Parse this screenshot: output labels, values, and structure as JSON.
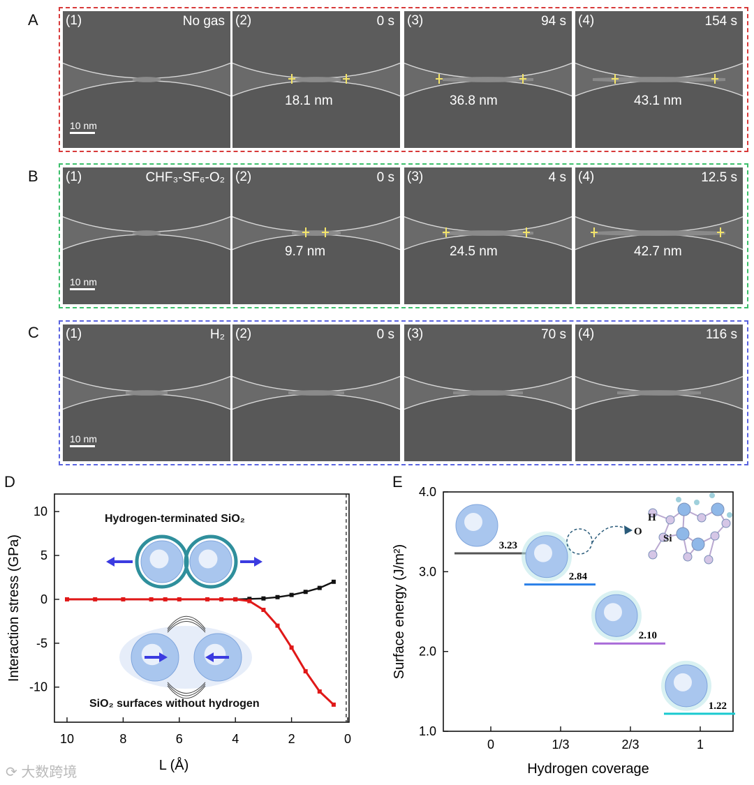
{
  "rows": [
    {
      "letter": "A",
      "color": "#d83a3a",
      "scalebar": "10 nm",
      "tiles": [
        {
          "idx": "(1)",
          "cond": "No gas",
          "meas": ""
        },
        {
          "idx": "(2)",
          "cond": "0 s",
          "meas": "18.1 nm"
        },
        {
          "idx": "(3)",
          "cond": "94 s",
          "meas": "36.8 nm"
        },
        {
          "idx": "(4)",
          "cond": "154 s",
          "meas": "43.1 nm"
        }
      ]
    },
    {
      "letter": "B",
      "color": "#3cbf6b",
      "scalebar": "10 nm",
      "tiles": [
        {
          "idx": "(1)",
          "cond": "CHF₃-SF₆-O₂",
          "meas": ""
        },
        {
          "idx": "(2)",
          "cond": "0 s",
          "meas": "9.7 nm"
        },
        {
          "idx": "(3)",
          "cond": "4 s",
          "meas": "24.5 nm"
        },
        {
          "idx": "(4)",
          "cond": "12.5 s",
          "meas": "42.7 nm"
        }
      ]
    },
    {
      "letter": "C",
      "color": "#5a64e0",
      "scalebar": "10 nm",
      "tiles": [
        {
          "idx": "(1)",
          "cond": "H₂",
          "meas": ""
        },
        {
          "idx": "(2)",
          "cond": "0 s",
          "meas": ""
        },
        {
          "idx": "(3)",
          "cond": "70 s",
          "meas": ""
        },
        {
          "idx": "(4)",
          "cond": "116 s",
          "meas": ""
        }
      ]
    }
  ],
  "panelD": {
    "letter": "D",
    "label_top": "Hydrogen-terminated SiO₂",
    "label_bottom": "SiO₂ surfaces without hydrogen"
  },
  "panelE": {
    "letter": "E",
    "orbit_labels": {
      "h": "H",
      "o": "O",
      "si": "Si"
    }
  },
  "watermark": "大数跨境",
  "chart_data": [
    {
      "type": "line",
      "title": "",
      "xlabel": "L (Å)",
      "ylabel": "Interaction stress (GPa)",
      "xlim": [
        10,
        0
      ],
      "ylim": [
        -14,
        12
      ],
      "xticks": [
        10,
        8,
        6,
        4,
        2,
        0
      ],
      "yticks": [
        10,
        5,
        0,
        -5,
        -10
      ],
      "series": [
        {
          "name": "Hydrogen-terminated SiO₂",
          "color": "#111111",
          "x": [
            10,
            9,
            8,
            7,
            6.5,
            6,
            5,
            4.5,
            4,
            3.5,
            3,
            2.5,
            2,
            1.5,
            1,
            0.5
          ],
          "y": [
            0,
            0,
            0,
            0,
            0,
            0,
            0,
            0,
            0,
            0.05,
            0.1,
            0.25,
            0.5,
            0.85,
            1.3,
            2.0
          ]
        },
        {
          "name": "SiO₂ surfaces without hydrogen",
          "color": "#e01818",
          "x": [
            10,
            9,
            8,
            7,
            6.5,
            6,
            5,
            4.5,
            4,
            3.5,
            3,
            2.5,
            2,
            1.5,
            1,
            0.5
          ],
          "y": [
            0,
            0,
            0,
            0,
            0,
            0,
            0,
            0,
            0,
            -0.2,
            -1.2,
            -3.0,
            -5.5,
            -8.2,
            -10.5,
            -12.0
          ]
        }
      ],
      "vline": 0.5
    },
    {
      "type": "bar",
      "title": "",
      "xlabel": "Hydrogen coverage",
      "ylabel": "Surface energy (J/m²)",
      "categories": [
        "0",
        "1/3",
        "2/3",
        "1"
      ],
      "values": [
        3.23,
        2.84,
        2.1,
        1.22
      ],
      "value_labels": [
        "3.23",
        "2.84",
        "2.10",
        "1.22"
      ],
      "colors": [
        "#555555",
        "#2a7fe8",
        "#a86ad8",
        "#19c9d0"
      ],
      "ylim": [
        1.0,
        4.0
      ],
      "yticks": [
        "1.0",
        "2.0",
        "3.0",
        "4.0"
      ]
    }
  ]
}
